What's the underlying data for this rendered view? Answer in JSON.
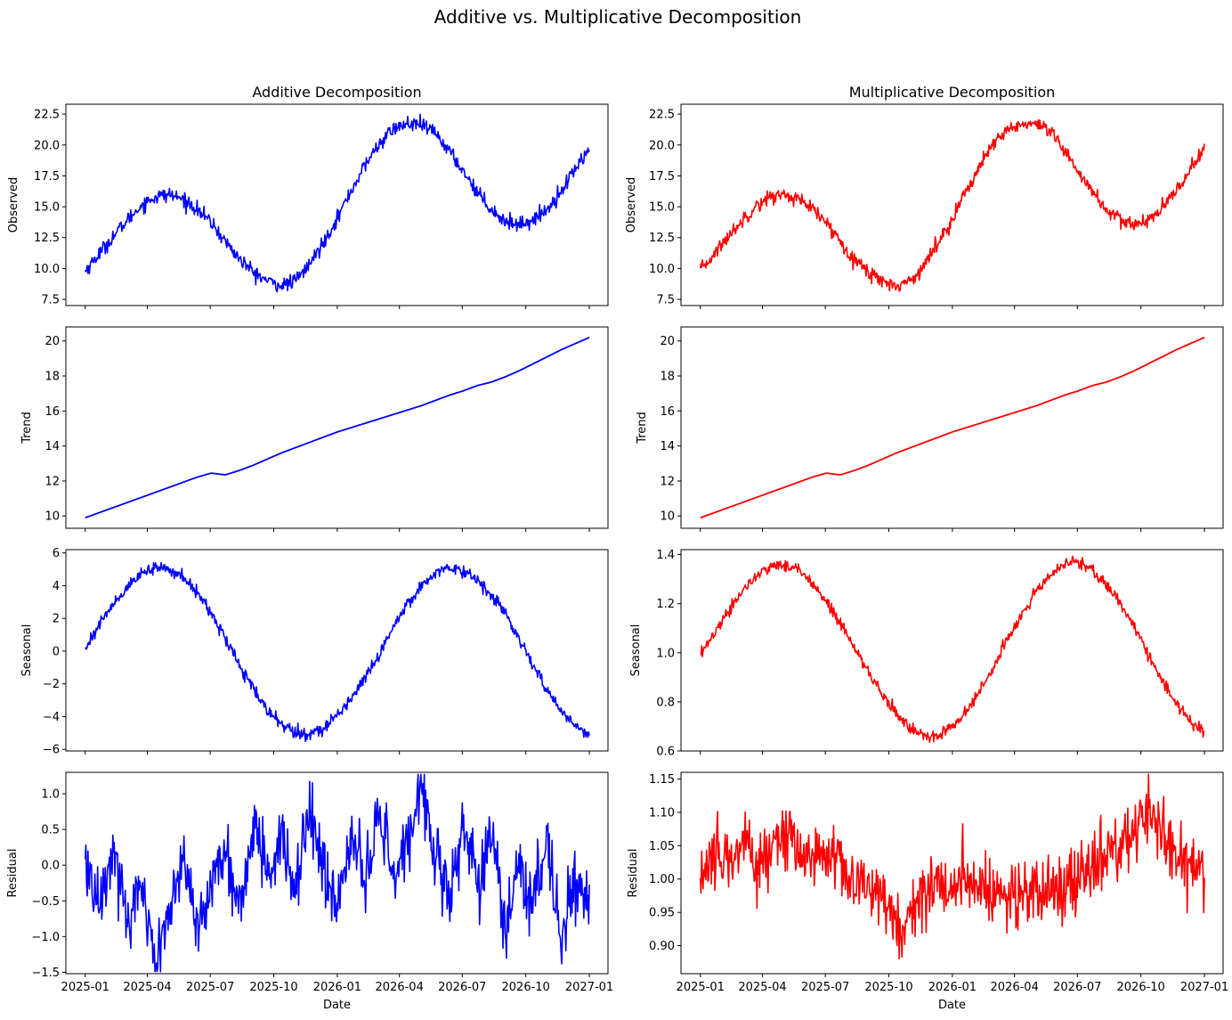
{
  "figure": {
    "title": "Additive vs. Multiplicative Decomposition"
  },
  "chart_data": [
    {
      "type": "line",
      "title": "Additive Decomposition",
      "ylabel": "Observed",
      "xlabel": "",
      "color": "#0000ff",
      "ylim": [
        7.0,
        23.3
      ],
      "yticks": [
        7.5,
        10.0,
        12.5,
        15.0,
        17.5,
        20.0,
        22.5
      ],
      "xlim": [
        "2024-12-04",
        "2027-01-28"
      ],
      "xticks": [
        "2025-01",
        "2025-04",
        "2025-07",
        "2025-10",
        "2026-01",
        "2026-04",
        "2026-07",
        "2026-10",
        "2027-01"
      ],
      "series": [
        {
          "x_start": "2025-01-01",
          "x_end": "2027-01-01",
          "values": [
            9.8,
            11.2,
            12.6,
            13.9,
            15.1,
            15.8,
            16.0,
            15.6,
            14.8,
            13.7,
            12.2,
            10.8,
            9.7,
            9.0,
            8.6,
            9.0,
            10.3,
            12.1,
            14.1,
            16.3,
            18.4,
            20.1,
            21.3,
            21.7,
            21.6,
            21.0,
            19.5,
            17.9,
            16.2,
            14.8,
            13.8,
            13.6,
            13.9,
            14.8,
            16.3,
            18.1,
            19.7
          ]
        }
      ]
    },
    {
      "type": "line",
      "title": "Multiplicative Decomposition",
      "ylabel": "Observed",
      "xlabel": "",
      "color": "#ff0000",
      "ylim": [
        7.0,
        23.3
      ],
      "yticks": [
        7.5,
        10.0,
        12.5,
        15.0,
        17.5,
        20.0,
        22.5
      ],
      "xlim": [
        "2024-12-04",
        "2027-01-28"
      ],
      "xticks": [
        "2025-01",
        "2025-04",
        "2025-07",
        "2025-10",
        "2026-01",
        "2026-04",
        "2026-07",
        "2026-10",
        "2027-01"
      ],
      "series": [
        {
          "x_start": "2025-01-01",
          "x_end": "2027-01-01",
          "values": [
            9.8,
            11.2,
            12.6,
            13.9,
            15.1,
            15.8,
            16.0,
            15.6,
            14.8,
            13.7,
            12.2,
            10.8,
            9.7,
            9.0,
            8.6,
            9.0,
            10.3,
            12.1,
            14.1,
            16.3,
            18.4,
            20.1,
            21.3,
            21.7,
            21.6,
            21.0,
            19.5,
            17.9,
            16.2,
            14.8,
            13.8,
            13.6,
            13.9,
            14.8,
            16.3,
            18.1,
            19.7
          ]
        }
      ]
    },
    {
      "type": "line",
      "title": "",
      "ylabel": "Trend",
      "xlabel": "",
      "color": "#0000ff",
      "ylim": [
        9.3,
        20.8
      ],
      "yticks": [
        10,
        12,
        14,
        16,
        18,
        20
      ],
      "xlim": [
        "2024-12-04",
        "2027-01-28"
      ],
      "xticks": [
        "2025-01",
        "2025-04",
        "2025-07",
        "2025-10",
        "2026-01",
        "2026-04",
        "2026-07",
        "2026-10",
        "2027-01"
      ],
      "series": [
        {
          "x_start": "2025-01-01",
          "x_end": "2027-01-01",
          "values": [
            9.9,
            10.19,
            10.48,
            10.77,
            11.06,
            11.35,
            11.64,
            11.93,
            12.22,
            12.45,
            12.35,
            12.6,
            12.9,
            13.25,
            13.6,
            13.9,
            14.2,
            14.5,
            14.8,
            15.05,
            15.3,
            15.55,
            15.8,
            16.05,
            16.3,
            16.6,
            16.9,
            17.15,
            17.45,
            17.65,
            17.95,
            18.3,
            18.7,
            19.1,
            19.5,
            19.85,
            20.2
          ]
        }
      ]
    },
    {
      "type": "line",
      "title": "",
      "ylabel": "Trend",
      "xlabel": "",
      "color": "#ff0000",
      "ylim": [
        9.3,
        20.8
      ],
      "yticks": [
        10,
        12,
        14,
        16,
        18,
        20
      ],
      "xlim": [
        "2024-12-04",
        "2027-01-28"
      ],
      "xticks": [
        "2025-01",
        "2025-04",
        "2025-07",
        "2025-10",
        "2026-01",
        "2026-04",
        "2026-07",
        "2026-10",
        "2027-01"
      ],
      "series": [
        {
          "x_start": "2025-01-01",
          "x_end": "2027-01-01",
          "values": [
            9.9,
            10.19,
            10.48,
            10.77,
            11.06,
            11.35,
            11.64,
            11.93,
            12.22,
            12.45,
            12.35,
            12.6,
            12.9,
            13.25,
            13.6,
            13.9,
            14.2,
            14.5,
            14.8,
            15.05,
            15.3,
            15.55,
            15.8,
            16.05,
            16.3,
            16.6,
            16.9,
            17.15,
            17.45,
            17.65,
            17.95,
            18.3,
            18.7,
            19.1,
            19.5,
            19.85,
            20.2
          ]
        }
      ]
    },
    {
      "type": "line",
      "title": "",
      "ylabel": "Seasonal",
      "xlabel": "",
      "color": "#0000ff",
      "ylim": [
        -6.1,
        6.2
      ],
      "yticks": [
        -6,
        -4,
        -2,
        0,
        2,
        4,
        6
      ],
      "xlim": [
        "2024-12-04",
        "2027-01-28"
      ],
      "xticks": [
        "2025-01",
        "2025-04",
        "2025-07",
        "2025-10",
        "2026-01",
        "2026-04",
        "2026-07",
        "2026-10",
        "2027-01"
      ],
      "series": [
        {
          "x_start": "2025-01-01",
          "x_end": "2027-01-01",
          "values": [
            0.2,
            1.6,
            2.9,
            3.9,
            4.7,
            5.1,
            5.0,
            4.5,
            3.6,
            2.3,
            0.8,
            -0.8,
            -2.3,
            -3.6,
            -4.5,
            -5.0,
            -5.1,
            -4.7,
            -3.9,
            -2.9,
            -1.6,
            -0.2,
            1.5,
            2.9,
            4.0,
            4.8,
            5.1,
            4.9,
            4.4,
            3.5,
            2.2,
            0.7,
            -0.9,
            -2.4,
            -3.7,
            -4.6,
            -5.0
          ]
        }
      ]
    },
    {
      "type": "line",
      "title": "",
      "ylabel": "Seasonal",
      "xlabel": "",
      "color": "#ff0000",
      "ylim": [
        0.6,
        1.42
      ],
      "yticks": [
        0.6,
        0.8,
        1.0,
        1.2,
        1.4
      ],
      "xlim": [
        "2024-12-04",
        "2027-01-28"
      ],
      "xticks": [
        "2025-01",
        "2025-04",
        "2025-07",
        "2025-10",
        "2026-01",
        "2026-04",
        "2026-07",
        "2026-10",
        "2027-01"
      ],
      "series": [
        {
          "x_start": "2025-01-01",
          "x_end": "2027-01-01",
          "values": [
            0.99,
            1.08,
            1.17,
            1.25,
            1.31,
            1.35,
            1.36,
            1.34,
            1.29,
            1.21,
            1.12,
            1.02,
            0.92,
            0.83,
            0.75,
            0.69,
            0.66,
            0.66,
            0.7,
            0.76,
            0.85,
            0.95,
            1.06,
            1.16,
            1.25,
            1.32,
            1.36,
            1.37,
            1.34,
            1.28,
            1.2,
            1.1,
            0.99,
            0.88,
            0.79,
            0.72,
            0.68
          ]
        }
      ]
    },
    {
      "type": "line",
      "title": "",
      "ylabel": "Residual",
      "xlabel": "Date",
      "color": "#0000ff",
      "ylim": [
        -1.52,
        1.3
      ],
      "yticks": [
        -1.5,
        -1.0,
        -0.5,
        0.0,
        0.5,
        1.0
      ],
      "xlim": [
        "2024-12-04",
        "2027-01-28"
      ],
      "xticks": [
        "2025-01",
        "2025-04",
        "2025-07",
        "2025-10",
        "2026-01",
        "2026-04",
        "2026-07",
        "2026-10",
        "2027-01"
      ],
      "series": [
        {
          "x_start": "2025-01-01",
          "x_end": "2027-01-01",
          "values": [
            0.0,
            -0.5,
            0.3,
            -0.8,
            -0.2,
            -1.4,
            -0.6,
            0.1,
            -0.9,
            -0.3,
            0.2,
            -0.7,
            0.6,
            -0.1,
            0.4,
            -0.4,
            0.8,
            0.0,
            -0.6,
            0.5,
            -0.3,
            0.7,
            -0.2,
            0.3,
            1.2,
            0.1,
            -0.5,
            0.6,
            -0.2,
            0.4,
            -0.8,
            0.0,
            -0.5,
            0.3,
            -1.1,
            -0.2,
            -0.4
          ]
        }
      ]
    },
    {
      "type": "line",
      "title": "",
      "ylabel": "Residual",
      "xlabel": "Date",
      "color": "#ff0000",
      "ylim": [
        0.858,
        1.16
      ],
      "yticks": [
        0.9,
        0.95,
        1.0,
        1.05,
        1.1,
        1.15
      ],
      "xlim": [
        "2024-12-04",
        "2027-01-28"
      ],
      "xticks": [
        "2025-01",
        "2025-04",
        "2025-07",
        "2025-10",
        "2026-01",
        "2026-04",
        "2026-07",
        "2026-10",
        "2027-01"
      ],
      "series": [
        {
          "x_start": "2025-01-01",
          "x_end": "2027-01-01",
          "values": [
            1.0,
            1.04,
            1.03,
            1.05,
            1.02,
            1.04,
            1.06,
            1.05,
            1.03,
            1.04,
            1.02,
            0.99,
            1.0,
            0.97,
            0.93,
            0.95,
            0.98,
            1.0,
            0.99,
            1.01,
            0.98,
            0.97,
            0.99,
            0.97,
            0.98,
            0.99,
            0.98,
            1.0,
            1.02,
            1.03,
            1.05,
            1.08,
            1.1,
            1.07,
            1.04,
            1.02,
            1.0
          ]
        }
      ]
    }
  ]
}
